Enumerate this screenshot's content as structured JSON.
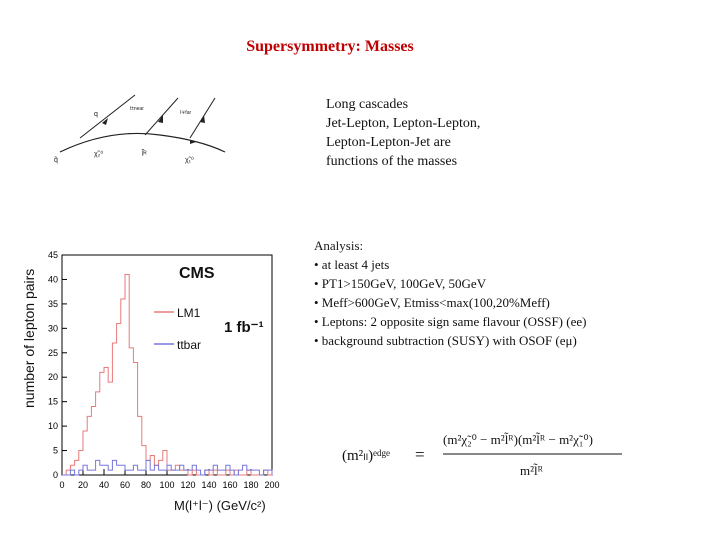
{
  "title": "Supersymmetry: Masses",
  "description": {
    "lines": [
      "Long cascades",
      "Jet-Lepton, Lepton-Lepton,",
      "Lepton-Lepton-Jet are",
      "functions of the masses"
    ]
  },
  "analysis": {
    "heading": "Analysis:",
    "bullets": [
      "• at least 4 jets",
      "• PT1>150GeV, 100GeV, 50GeV",
      "• Meff>600GeV, Etmiss<max(100,20%Meff)",
      "• Leptons: 2 opposite sign same flavour (OSSF) (ee)",
      "• background subtraction (SUSY) with OSOF (eμ)"
    ]
  },
  "diagram": {
    "labels": [
      "q",
      "q̃",
      "χ̃₂⁰",
      "l̃ᴿ",
      "χ̃₁⁰",
      "l±near",
      "l∓far"
    ]
  },
  "chart_data": {
    "type": "line",
    "title": "CMS",
    "annotation": "1 fb⁻¹",
    "xlabel": "M(l⁺l⁻) (GeV/c²)",
    "ylabel": "number of lepton pairs",
    "xlim": [
      0,
      200
    ],
    "ylim": [
      0,
      45
    ],
    "xticks": [
      0,
      20,
      40,
      60,
      80,
      100,
      120,
      140,
      160,
      180,
      200
    ],
    "yticks": [
      0,
      5,
      10,
      15,
      20,
      25,
      30,
      35,
      40,
      45
    ],
    "legend": [
      "LM1",
      "ttbar"
    ],
    "legend_position": "right",
    "series": [
      {
        "name": "LM1",
        "color": "#e87a7a",
        "bin_width": 4,
        "values": [
          0,
          1,
          2,
          3,
          5,
          9,
          12,
          14,
          17,
          21,
          22,
          19,
          27,
          31,
          36,
          41,
          26,
          23,
          12,
          6,
          3,
          4,
          2,
          3,
          5,
          1,
          1,
          2,
          1,
          1,
          0,
          1,
          0,
          0,
          1,
          0,
          1,
          0,
          0,
          1,
          0,
          1,
          0,
          0,
          1,
          0,
          0,
          0,
          1,
          0
        ]
      },
      {
        "name": "ttbar",
        "color": "#7777dd",
        "bin_width": 4,
        "values": [
          0,
          0,
          1,
          0,
          1,
          2,
          1,
          1,
          3,
          2,
          2,
          1,
          3,
          2,
          2,
          1,
          1,
          2,
          1,
          1,
          3,
          1,
          2,
          1,
          1,
          2,
          1,
          1,
          2,
          1,
          1,
          2,
          1,
          0,
          1,
          1,
          2,
          1,
          1,
          2,
          1,
          0,
          1,
          2,
          1,
          1,
          1,
          0,
          1,
          1
        ]
      }
    ]
  },
  "equation": {
    "lhs": "(m²ₗₗ)ᵉᵈᵍᵉ",
    "equals": "=",
    "numerator": "(m²χ̃₂⁰ − m²l̃ᴿ)(m²l̃ᴿ − m²χ̃₁⁰)",
    "denominator": "m²l̃ᴿ"
  }
}
